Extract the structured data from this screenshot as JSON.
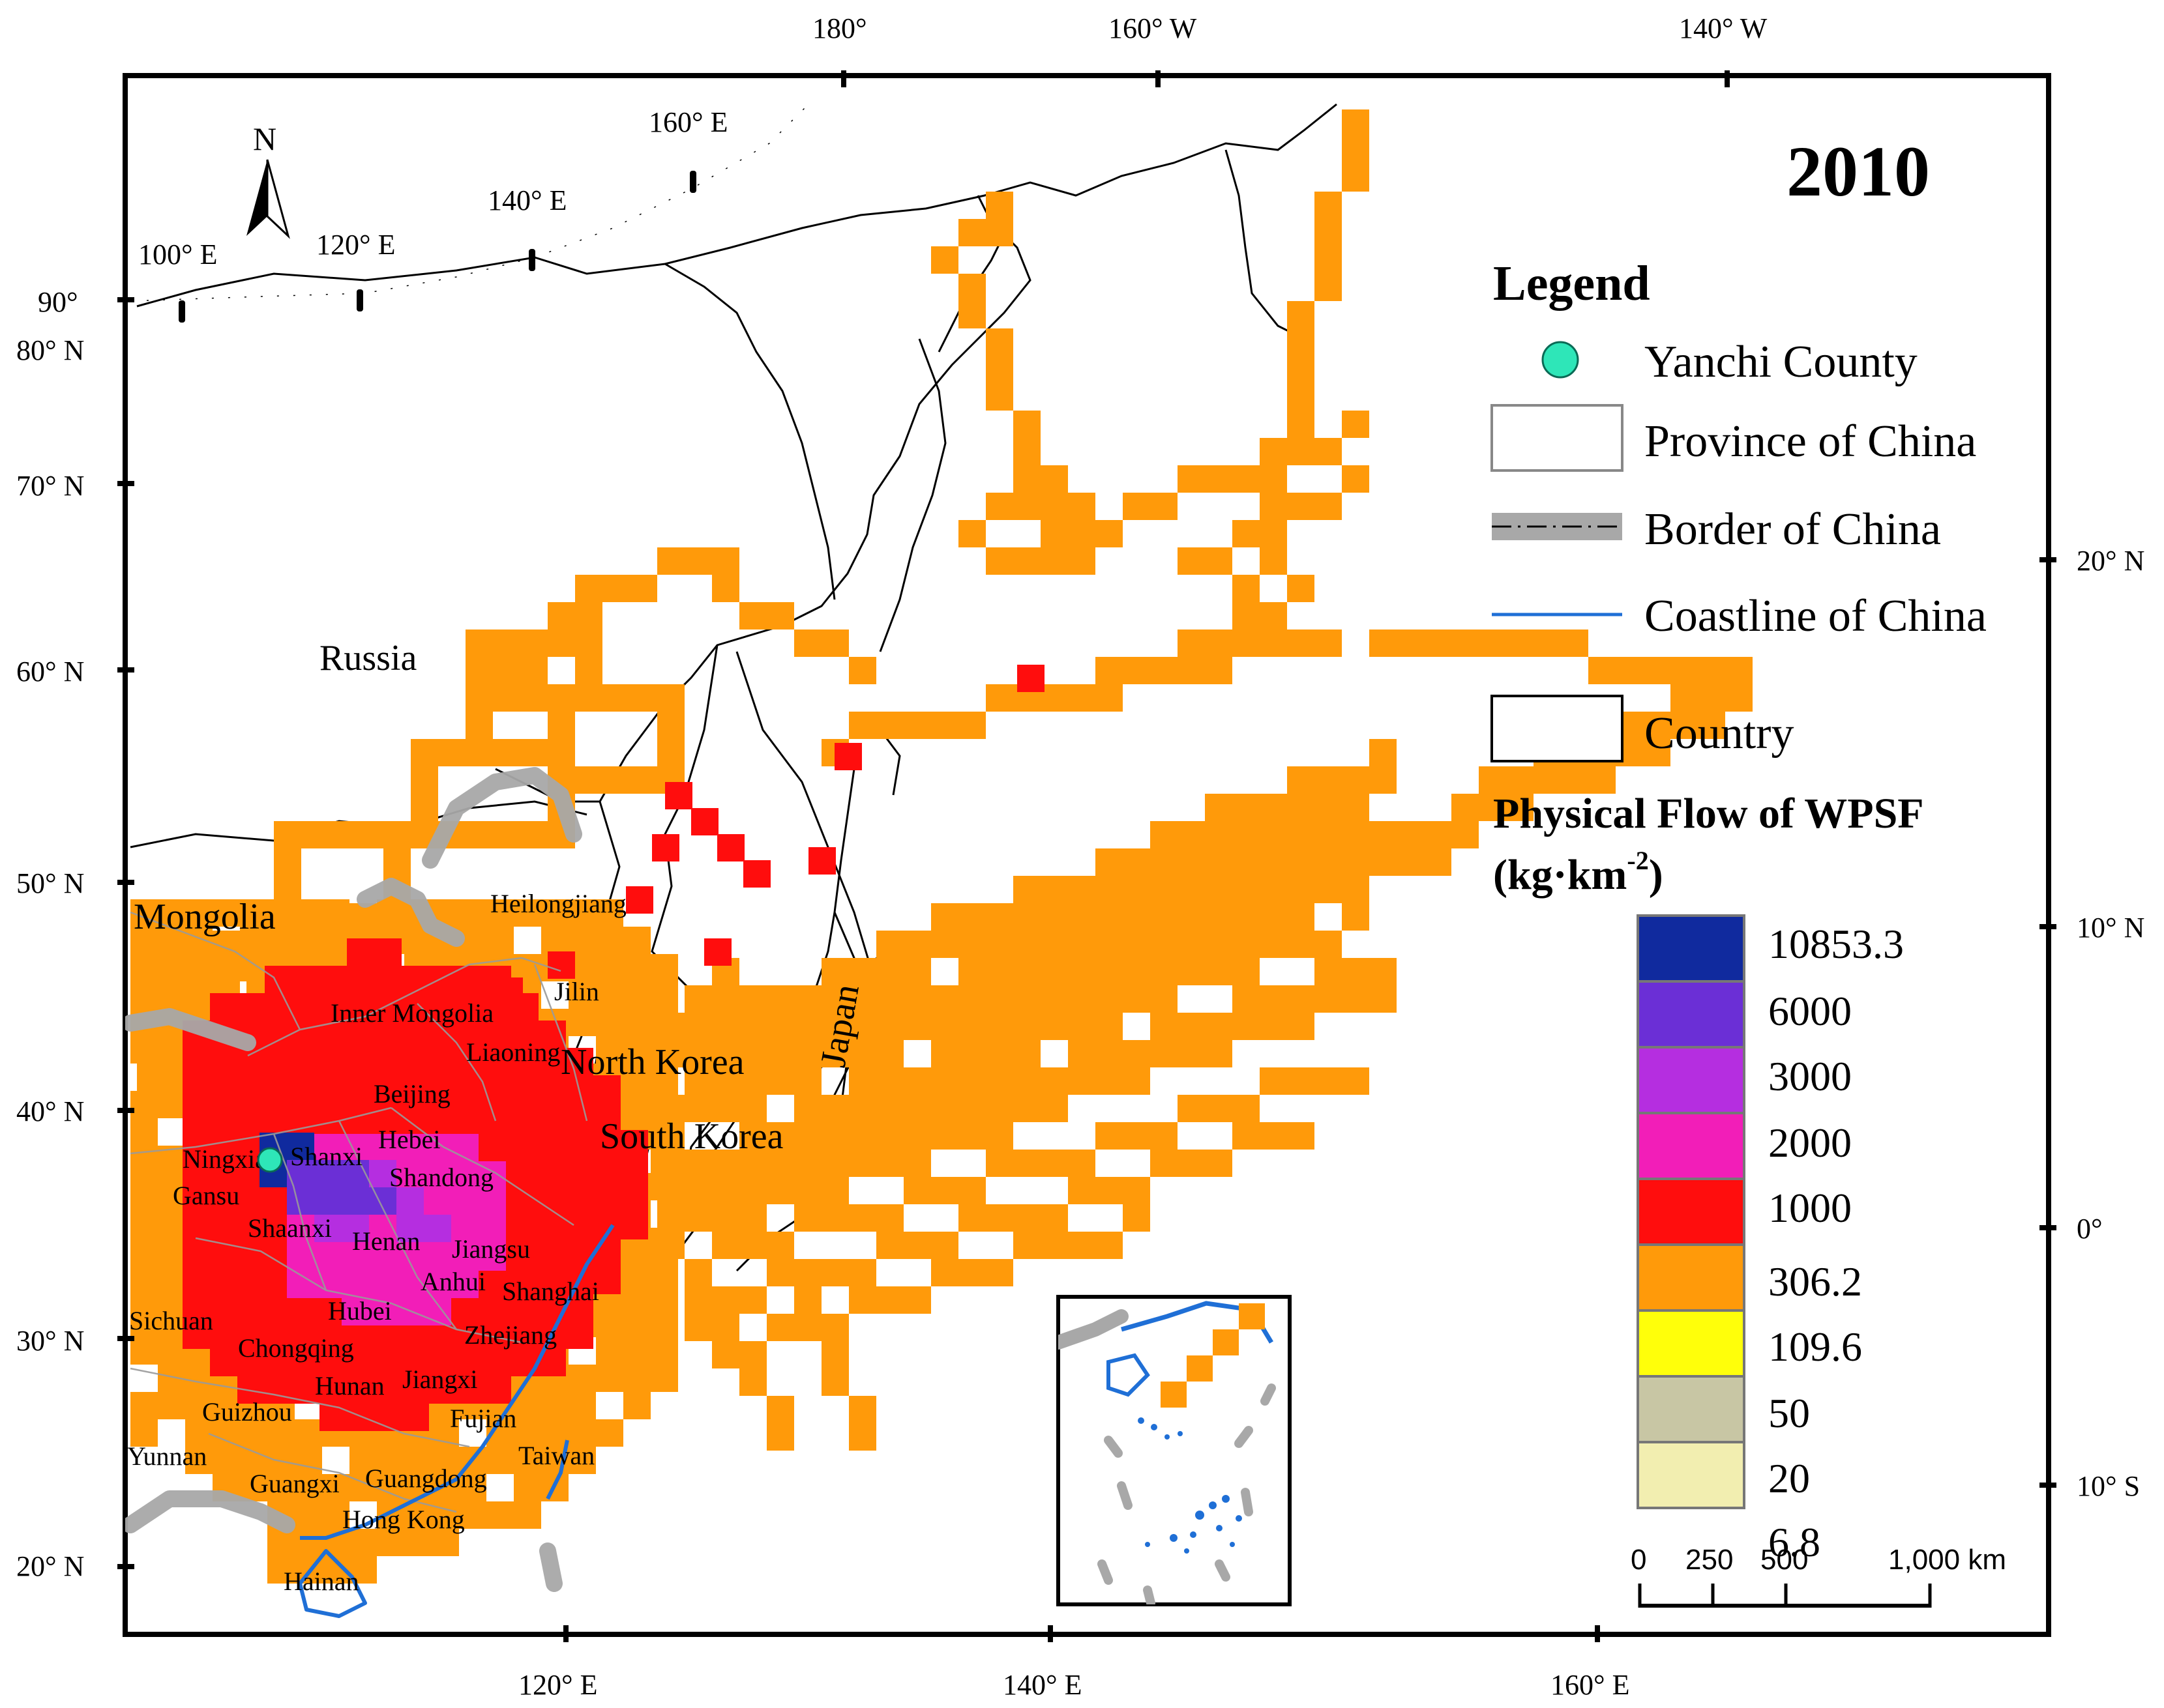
{
  "year": "2010",
  "north_arrow": "N",
  "legend": {
    "title": "Legend",
    "items": [
      {
        "label": "Yanchi County",
        "symbol": "dot",
        "color": "#2ee6b8"
      },
      {
        "label": "Province of China",
        "symbol": "box"
      },
      {
        "label": "Border of China",
        "symbol": "border"
      },
      {
        "label": "Coastline of China",
        "symbol": "line",
        "color": "#1f6fd6"
      },
      {
        "label": "Country",
        "symbol": "box"
      }
    ]
  },
  "flow_legend": {
    "title_line1": "Physical Flow of WPSF",
    "title_unit_base": "(kg·km",
    "title_unit_sup": "-2",
    "title_unit_close": ")",
    "classes": [
      {
        "value": "10853.3",
        "color": "#102a9e"
      },
      {
        "value": "6000",
        "color": "#6b2fd6"
      },
      {
        "value": "3000",
        "color": "#b52ee0"
      },
      {
        "value": "2000",
        "color": "#f21eb8"
      },
      {
        "value": "1000",
        "color": "#ff0d0d"
      },
      {
        "value": "306.2",
        "color": "#ff9a0a"
      },
      {
        "value": "109.6",
        "color": "#ffff0a"
      },
      {
        "value": "50",
        "color": "#c8c6a4"
      },
      {
        "value": "20",
        "color": "#f2eeb0"
      },
      {
        "value": "6.8"
      }
    ]
  },
  "scale_bar": {
    "labels": [
      "0",
      "250",
      "500",
      "1,000 km"
    ]
  },
  "graticule": {
    "top": [
      "180°",
      "160° W",
      "140° W"
    ],
    "bottom": [
      "120° E",
      "140° E",
      "160° E"
    ],
    "left": [
      "90°",
      "80° N",
      "70° N",
      "60° N",
      "50° N",
      "40° N",
      "30° N",
      "20° N"
    ],
    "right": [
      "20° N",
      "10° N",
      "0°",
      "10° S"
    ],
    "inner": [
      "100° E",
      "120° E",
      "140° E",
      "160° E"
    ]
  },
  "countries": {
    "russia": "Russia",
    "mongolia": "Mongolia",
    "north_korea": "North Korea",
    "south_korea": "South Korea",
    "japan": "Japan"
  },
  "provinces": [
    "Heilongjiang",
    "Jilin",
    "Inner Mongolia",
    "Liaoning",
    "Beijing",
    "Hebei",
    "Ningxia",
    "Shanxi",
    "Shandong",
    "Gansu",
    "Shaanxi",
    "Henan",
    "Jiangsu",
    "Anhui",
    "Shanghai",
    "Sichuan",
    "Hubei",
    "Chongqing",
    "Zhejiang",
    "Hunan",
    "Jiangxi",
    "Guizhou",
    "Fujian",
    "Yunnan",
    "Taiwan",
    "Guangxi",
    "Guangdong",
    "Hong Kong",
    "Hainan"
  ],
  "colors": {
    "orange": "#ff9a0a",
    "red": "#ff0d0d",
    "magenta": "#f21eb8",
    "purple": "#b52ee0",
    "violet": "#6b2fd6",
    "navy": "#102a9e",
    "border_gray": "#a8a8a8",
    "coast_blue": "#1f6fd6"
  }
}
